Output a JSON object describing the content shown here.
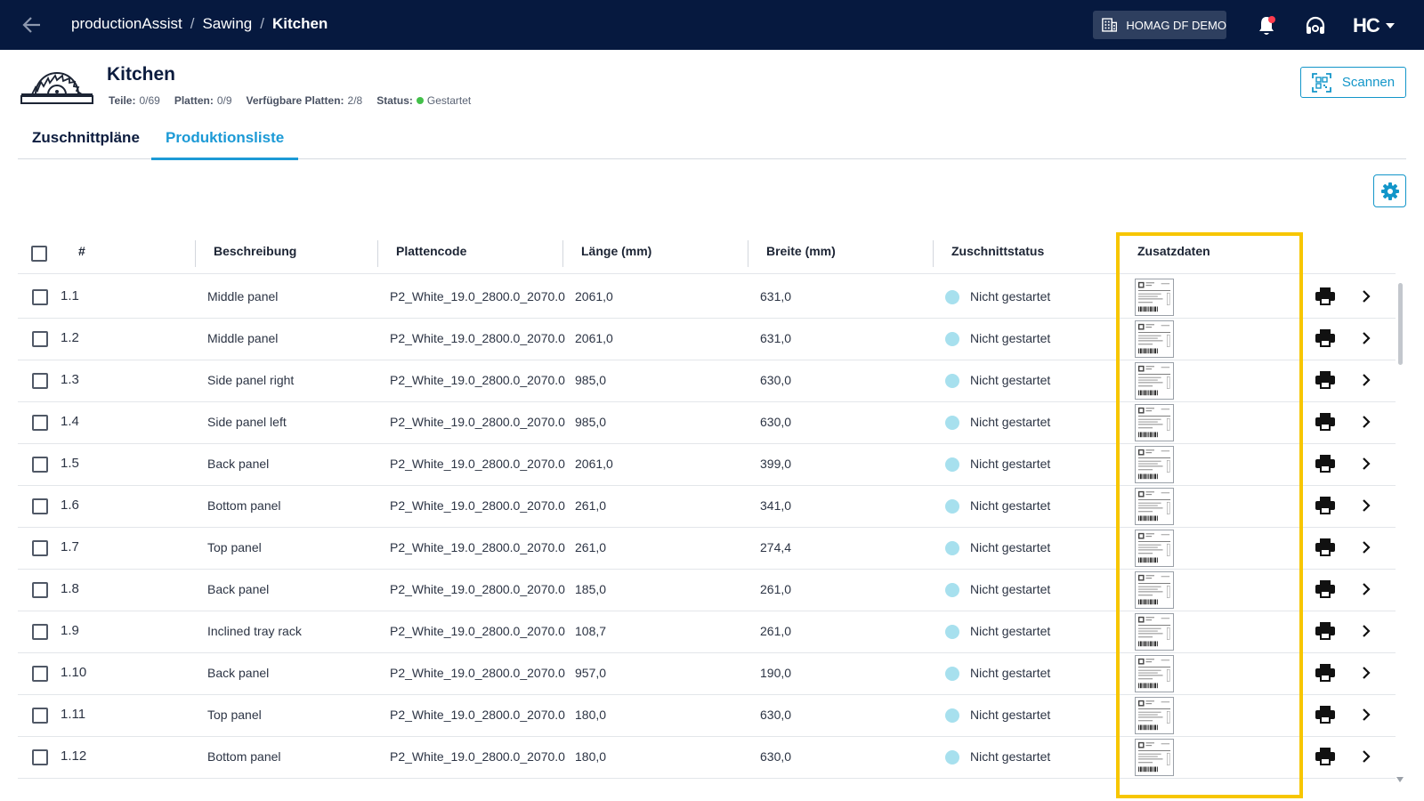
{
  "topbar": {
    "breadcrumbs": [
      "productionAssist",
      "Sawing",
      "Kitchen"
    ],
    "tenant_label": "HOMAG DF DEMO",
    "logo_text": "HC"
  },
  "header": {
    "title": "Kitchen",
    "meta": [
      {
        "label": "Teile:",
        "value": "0/69"
      },
      {
        "label": "Platten:",
        "value": "0/9"
      },
      {
        "label": "Verfügbare Platten:",
        "value": "2/8"
      },
      {
        "label": "Status:",
        "value": "Gestartet"
      }
    ],
    "status_color": "#43c04a",
    "scan_label": "Scannen"
  },
  "tabs": [
    {
      "label": "Zuschnittpläne",
      "active": false
    },
    {
      "label": "Produktionsliste",
      "active": true
    }
  ],
  "table": {
    "columns": [
      "#",
      "Beschreibung",
      "Plattencode",
      "Länge (mm)",
      "Breite (mm)",
      "Zuschnittstatus",
      "Zusatzdaten"
    ],
    "rows": [
      {
        "num": "1.1",
        "desc": "Middle panel",
        "code": "P2_White_19.0_2800.0_2070.0",
        "length": "2061,0",
        "width": "631,0",
        "status": "Nicht gestartet"
      },
      {
        "num": "1.2",
        "desc": "Middle panel",
        "code": "P2_White_19.0_2800.0_2070.0",
        "length": "2061,0",
        "width": "631,0",
        "status": "Nicht gestartet"
      },
      {
        "num": "1.3",
        "desc": "Side panel right",
        "code": "P2_White_19.0_2800.0_2070.0",
        "length": "985,0",
        "width": "630,0",
        "status": "Nicht gestartet"
      },
      {
        "num": "1.4",
        "desc": "Side panel left",
        "code": "P2_White_19.0_2800.0_2070.0",
        "length": "985,0",
        "width": "630,0",
        "status": "Nicht gestartet"
      },
      {
        "num": "1.5",
        "desc": "Back panel",
        "code": "P2_White_19.0_2800.0_2070.0",
        "length": "2061,0",
        "width": "399,0",
        "status": "Nicht gestartet"
      },
      {
        "num": "1.6",
        "desc": "Bottom panel",
        "code": "P2_White_19.0_2800.0_2070.0",
        "length": "261,0",
        "width": "341,0",
        "status": "Nicht gestartet"
      },
      {
        "num": "1.7",
        "desc": "Top panel",
        "code": "P2_White_19.0_2800.0_2070.0",
        "length": "261,0",
        "width": "274,4",
        "status": "Nicht gestartet"
      },
      {
        "num": "1.8",
        "desc": "Back panel",
        "code": "P2_White_19.0_2800.0_2070.0",
        "length": "185,0",
        "width": "261,0",
        "status": "Nicht gestartet"
      },
      {
        "num": "1.9",
        "desc": "Inclined tray rack",
        "code": "P2_White_19.0_2800.0_2070.0",
        "length": "108,7",
        "width": "261,0",
        "status": "Nicht gestartet"
      },
      {
        "num": "1.10",
        "desc": "Back panel",
        "code": "P2_White_19.0_2800.0_2070.0",
        "length": "957,0",
        "width": "190,0",
        "status": "Nicht gestartet"
      },
      {
        "num": "1.11",
        "desc": "Top panel",
        "code": "P2_White_19.0_2800.0_2070.0",
        "length": "180,0",
        "width": "630,0",
        "status": "Nicht gestartet"
      },
      {
        "num": "1.12",
        "desc": "Bottom panel",
        "code": "P2_White_19.0_2800.0_2070.0",
        "length": "180,0",
        "width": "630,0",
        "status": "Nicht gestartet"
      }
    ]
  },
  "icons": {
    "back": "arrow-left-icon",
    "tenant": "building-icon",
    "notifications": "bell-icon",
    "support": "headset-icon",
    "scan": "qr-scan-icon",
    "settings": "gear-icon",
    "print": "printer-icon",
    "open": "chevron-right-icon"
  },
  "colors": {
    "topbar": "#06193f",
    "accent": "#1396c9",
    "status_not_started": "#a7e0ee",
    "highlight": "#f7c600",
    "notification_dot": "#ff3b4e"
  }
}
